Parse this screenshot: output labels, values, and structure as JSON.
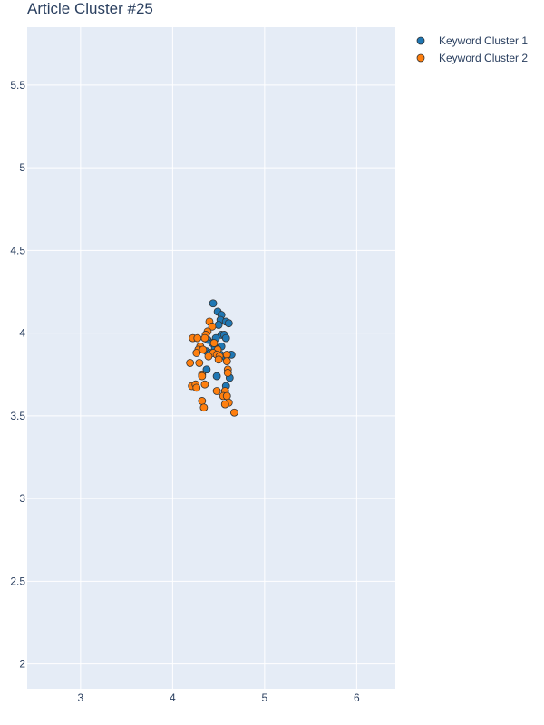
{
  "chart_data": {
    "type": "scatter",
    "title": "Article Cluster #25",
    "xlabel": "",
    "ylabel": "",
    "xlim": [
      2.42,
      6.42
    ],
    "ylim": [
      1.85,
      5.85
    ],
    "xticks": [
      3,
      4,
      5,
      6
    ],
    "yticks": [
      2,
      2.5,
      3,
      3.5,
      4,
      4.5,
      5,
      5.5
    ],
    "grid": true,
    "legend_position": "top-right",
    "colors": {
      "plot_bg": "#e5ecf6",
      "grid": "#ffffff",
      "text": "#2a3f5f",
      "marker_edge": "#333333"
    },
    "series": [
      {
        "name": "Keyword Cluster 1",
        "color": "#1f77b4",
        "points": [
          [
            4.44,
            4.18
          ],
          [
            4.49,
            4.13
          ],
          [
            4.53,
            4.11
          ],
          [
            4.52,
            4.08
          ],
          [
            4.58,
            4.07
          ],
          [
            4.61,
            4.06
          ],
          [
            4.5,
            4.05
          ],
          [
            4.53,
            3.99
          ],
          [
            4.56,
            3.99
          ],
          [
            4.58,
            3.97
          ],
          [
            4.47,
            3.97
          ],
          [
            4.38,
            3.96
          ],
          [
            4.43,
            3.94
          ],
          [
            4.53,
            3.92
          ],
          [
            4.46,
            3.91
          ],
          [
            4.37,
            3.89
          ],
          [
            4.41,
            3.88
          ],
          [
            4.64,
            3.87
          ],
          [
            4.52,
            3.87
          ],
          [
            4.56,
            3.86
          ],
          [
            4.37,
            3.78
          ],
          [
            4.48,
            3.74
          ],
          [
            4.62,
            3.73
          ],
          [
            4.58,
            3.68
          ]
        ]
      },
      {
        "name": "Keyword Cluster 2",
        "color": "#ff7f0e",
        "points": [
          [
            4.4,
            4.07
          ],
          [
            4.43,
            4.04
          ],
          [
            4.38,
            4.01
          ],
          [
            4.36,
            3.99
          ],
          [
            4.22,
            3.97
          ],
          [
            4.27,
            3.97
          ],
          [
            4.35,
            3.97
          ],
          [
            4.45,
            3.94
          ],
          [
            4.3,
            3.92
          ],
          [
            4.28,
            3.9
          ],
          [
            4.33,
            3.9
          ],
          [
            4.49,
            3.9
          ],
          [
            4.26,
            3.88
          ],
          [
            4.44,
            3.88
          ],
          [
            4.48,
            3.87
          ],
          [
            4.39,
            3.86
          ],
          [
            4.51,
            3.86
          ],
          [
            4.59,
            3.87
          ],
          [
            4.5,
            3.84
          ],
          [
            4.29,
            3.82
          ],
          [
            4.59,
            3.83
          ],
          [
            4.19,
            3.82
          ],
          [
            4.6,
            3.78
          ],
          [
            4.6,
            3.76
          ],
          [
            4.32,
            3.75
          ],
          [
            4.32,
            3.74
          ],
          [
            4.35,
            3.69
          ],
          [
            4.21,
            3.68
          ],
          [
            4.25,
            3.69
          ],
          [
            4.26,
            3.67
          ],
          [
            4.48,
            3.65
          ],
          [
            4.57,
            3.65
          ],
          [
            4.55,
            3.62
          ],
          [
            4.59,
            3.62
          ],
          [
            4.32,
            3.59
          ],
          [
            4.61,
            3.58
          ],
          [
            4.57,
            3.57
          ],
          [
            4.34,
            3.55
          ],
          [
            4.67,
            3.52
          ]
        ]
      }
    ]
  }
}
